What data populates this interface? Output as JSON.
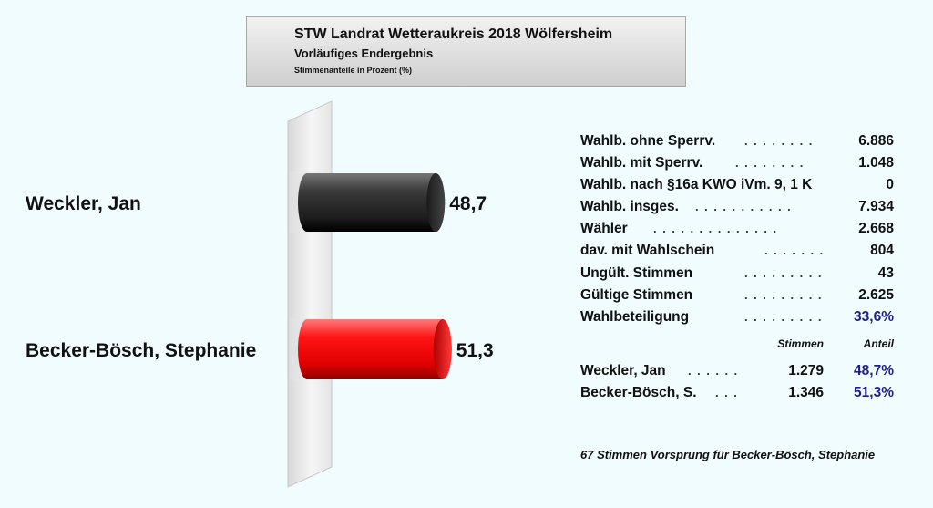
{
  "header": {
    "title": "STW Landrat Wetteraukreis 2018 Wölfersheim",
    "subtitle": "Vorläufiges Endergebnis",
    "note": "Stimmenanteile in Prozent (%)"
  },
  "chart_data": {
    "type": "bar",
    "orientation": "horizontal",
    "title": "STW Landrat Wetteraukreis 2018 Wölfersheim",
    "subtitle": "Vorläufiges Endergebnis",
    "unit_note": "Stimmenanteile in Prozent (%)",
    "categories": [
      "Weckler, Jan",
      "Becker-Bösch, Stephanie"
    ],
    "values": [
      48.7,
      51.3
    ],
    "value_labels": [
      "48,7",
      "51,3"
    ],
    "colors": [
      "#2d2d2d",
      "#e50000"
    ],
    "xlim": [
      0,
      100
    ],
    "grid": false,
    "legend": "none"
  },
  "stats": [
    {
      "label": "Wahlb. ohne Sperrv.",
      "dots": "........",
      "value": "6.886",
      "accent": false
    },
    {
      "label": "Wahlb. mit Sperrv.",
      "dots": "........",
      "value": "1.048",
      "accent": false
    },
    {
      "label": "Wahlb. nach §16a KWO iVm. 9, 1 K",
      "dots": "",
      "value": "0",
      "accent": false
    },
    {
      "label": "Wahlb. insges.",
      "dots": "...........",
      "value": "7.934",
      "accent": false
    },
    {
      "label": "Wähler",
      "dots": "..............",
      "value": "2.668",
      "accent": false
    },
    {
      "label": "dav. mit Wahlschein",
      "dots": ".......",
      "value": "804",
      "accent": false
    },
    {
      "label": "Ungült. Stimmen",
      "dots": ".........",
      "value": "43",
      "accent": false
    },
    {
      "label": "Gültige Stimmen",
      "dots": ".........",
      "value": "2.625",
      "accent": false
    },
    {
      "label": "Wahlbeteiligung",
      "dots": ".........",
      "value": "33,6%",
      "accent": true
    }
  ],
  "results_header": {
    "votes": "Stimmen",
    "share": "Anteil"
  },
  "results": [
    {
      "label": "Weckler, Jan",
      "dots": "......",
      "votes": "1.279",
      "share": "48,7%"
    },
    {
      "label": "Becker-Bösch, S.",
      "dots": "...",
      "votes": "1.346",
      "share": "51,3%"
    }
  ],
  "footer": "67 Stimmen Vorsprung für Becker-Bösch, Stephanie"
}
